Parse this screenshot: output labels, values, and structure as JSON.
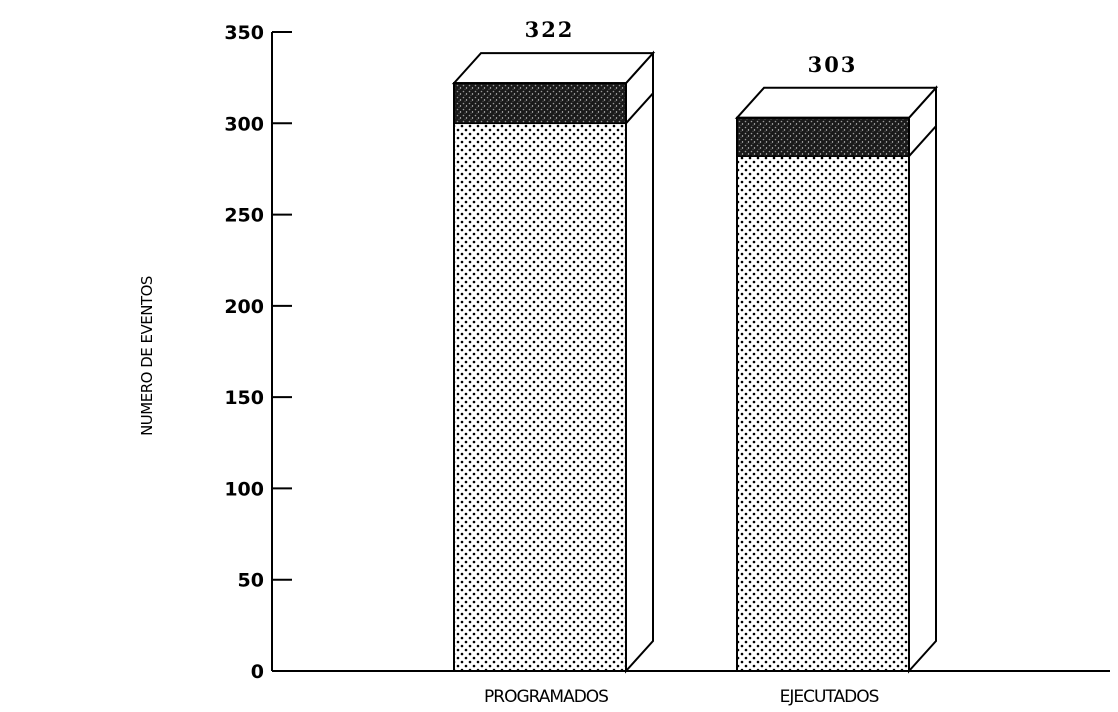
{
  "chart_data": {
    "type": "bar",
    "stacked": true,
    "three_d": true,
    "title": "",
    "xlabel": "",
    "ylabel": "NUMERO DE EVENTOS",
    "ylim": [
      0,
      350
    ],
    "yticks": [
      0,
      50,
      100,
      150,
      200,
      250,
      300,
      350
    ],
    "ytick_labels": [
      "0",
      "50",
      "100",
      "150",
      "200",
      "250",
      "300",
      "350"
    ],
    "grid": false,
    "categories": [
      "PROGRAMADOS",
      "EJECUTADOS"
    ],
    "series": [
      {
        "values": [
          300,
          282
        ],
        "pattern": "dotted",
        "color": "#000000"
      },
      {
        "values": [
          22,
          21
        ],
        "pattern": "dark-stipple",
        "color": "#222222"
      }
    ],
    "totals": [
      322,
      303
    ],
    "total_labels": [
      "322",
      "303"
    ]
  }
}
